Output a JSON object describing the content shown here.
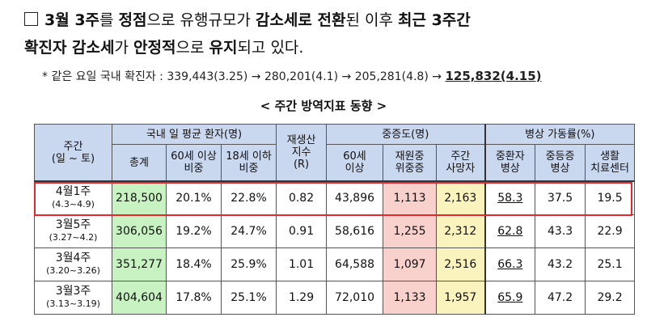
{
  "headline": {
    "part1": "3월 3주",
    "part2": "를 ",
    "part3": "정점",
    "part4": "으로 유행규모가 ",
    "part5": "감소세로 전환",
    "part6": "된 이후 ",
    "part7": "최근 3주간",
    "part8": "확진자 감소세",
    "part9": "가 ",
    "part10": "안정적",
    "part11": "으로 ",
    "part12": "유지",
    "part13": "되고 있다."
  },
  "note": {
    "prefix": "* 같은 요일 국내 확진자 : ",
    "values": [
      "339,443(3.25)",
      "280,201(4.1)",
      "205,281(4.8)"
    ],
    "arrow": " → ",
    "last": "125,832(4.15)"
  },
  "table_title": "< 주간 방역지표 동향 >",
  "headers": {
    "week_line1": "주간",
    "week_line2": "(일 ~ 토)",
    "patients_group": "국내 일 평균 환자(명)",
    "total": "총계",
    "over60_line1": "60세 이상",
    "over60_line2": "비중",
    "under18_line1": "18세 이하",
    "under18_line2": "비중",
    "r_line1": "재생산",
    "r_line2": "지수",
    "r_line3": "(R)",
    "severe_group": "중증도(명)",
    "severe60_line1": "60세",
    "severe60_line2": "이상",
    "critical_line1": "재원중",
    "critical_line2": "위중증",
    "deaths_line1": "주간",
    "deaths_line2": "사망자",
    "beds_group": "병상 가동률(%)",
    "bed_severe_line1": "중환자",
    "bed_severe_line2": "병상",
    "bed_moderate_line1": "중등증",
    "bed_moderate_line2": "병상",
    "bed_center_line1": "생활",
    "bed_center_line2": "치료센터"
  },
  "rows": [
    {
      "week": "4월1주",
      "range": "(4.3~4.9)",
      "total": "218,500",
      "over60": "20.1%",
      "under18": "22.8%",
      "r": "0.82",
      "severe60": "43,896",
      "critical": "1,113",
      "deaths": "2,163",
      "bed_severe": "58.3",
      "bed_moderate": "37.5",
      "bed_center": "19.5"
    },
    {
      "week": "3월5주",
      "range": "(3.27~4.2)",
      "total": "306,056",
      "over60": "19.2%",
      "under18": "24.7%",
      "r": "0.91",
      "severe60": "58,616",
      "critical": "1,255",
      "deaths": "2,312",
      "bed_severe": "62.8",
      "bed_moderate": "43.3",
      "bed_center": "22.9"
    },
    {
      "week": "3월4주",
      "range": "(3.20~3.26)",
      "total": "351,277",
      "over60": "18.4%",
      "under18": "25.9%",
      "r": "1.01",
      "severe60": "64,588",
      "critical": "1,097",
      "deaths": "2,516",
      "bed_severe": "66.3",
      "bed_moderate": "43.2",
      "bed_center": "25.1"
    },
    {
      "week": "3월3주",
      "range": "(3.13~3.19)",
      "total": "404,604",
      "over60": "17.8%",
      "under18": "25.1%",
      "r": "1.29",
      "severe60": "72,010",
      "critical": "1,133",
      "deaths": "1,957",
      "bed_severe": "65.9",
      "bed_moderate": "47.2",
      "bed_center": "29.2"
    }
  ],
  "colors": {
    "header_bg": "#c9d7ef",
    "total_bg": "#c8f2c2",
    "critical_bg": "#f8d0cc",
    "deaths_bg": "#fbf3be",
    "highlight": "#e8262c"
  }
}
